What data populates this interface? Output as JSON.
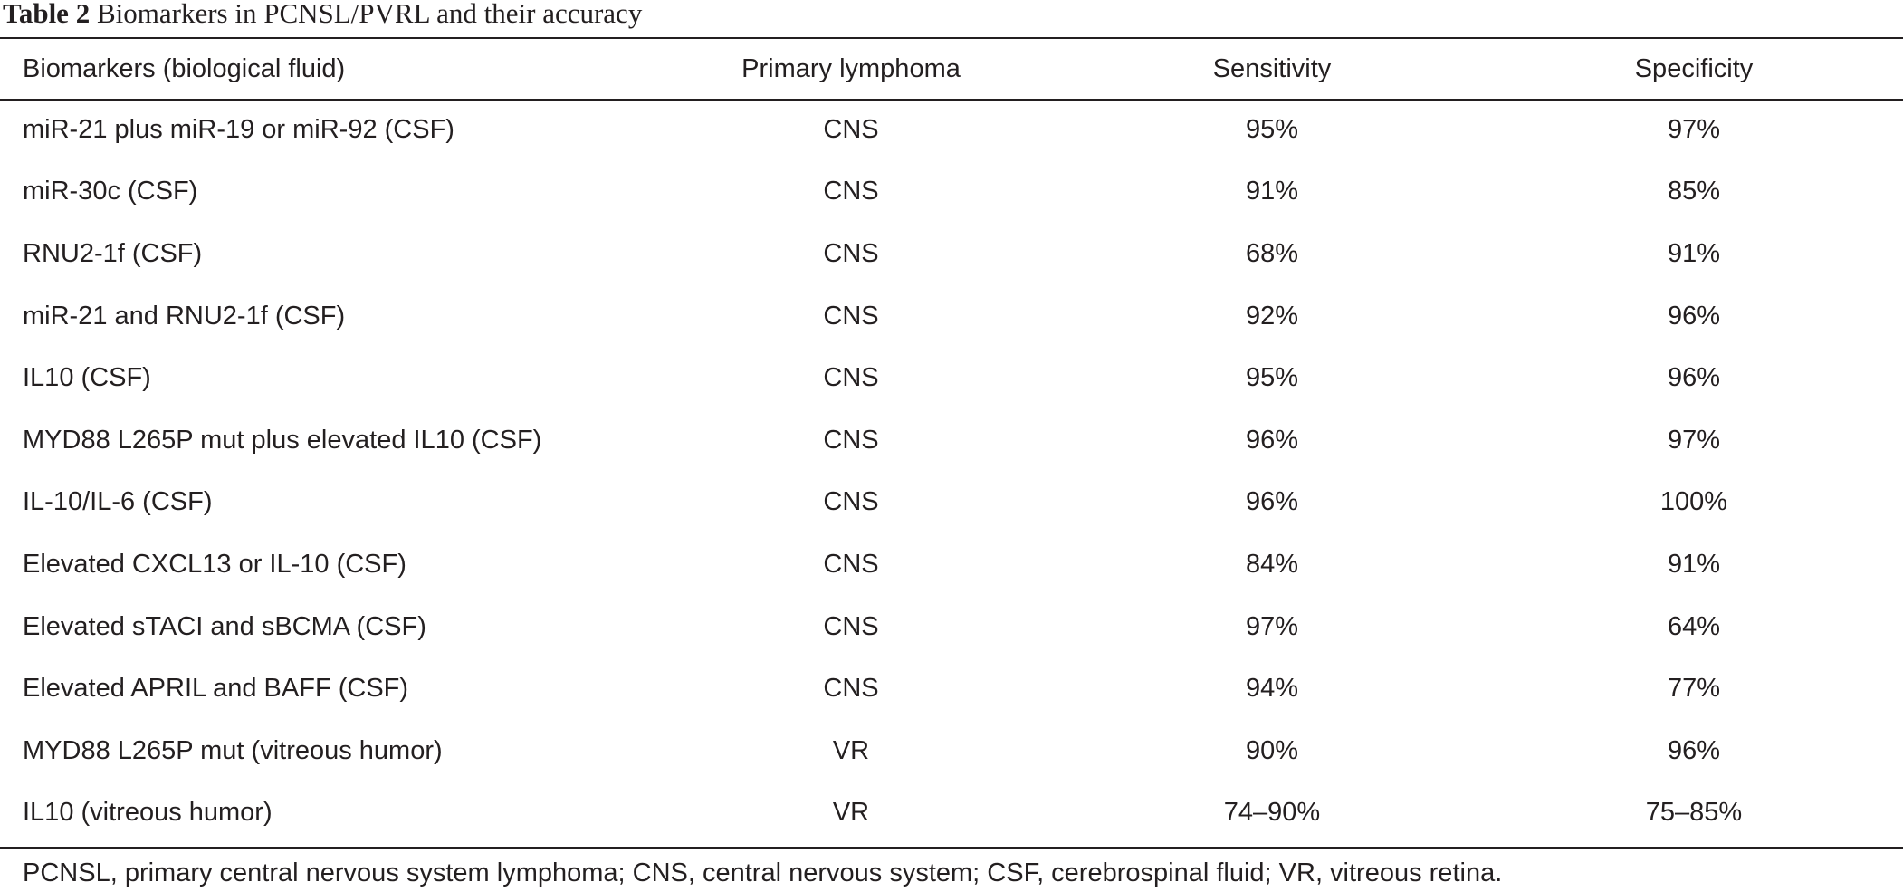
{
  "caption": {
    "label": "Table 2",
    "title": "Biomarkers in PCNSL/PVRL and their accuracy"
  },
  "table": {
    "headers": [
      "Biomarkers (biological fluid)",
      "Primary lymphoma",
      "Sensitivity",
      "Specificity"
    ],
    "rows": [
      [
        "miR-21 plus miR-19 or miR-92 (CSF)",
        "CNS",
        "95%",
        "97%"
      ],
      [
        "miR-30c (CSF)",
        "CNS",
        "91%",
        "85%"
      ],
      [
        "RNU2-1f (CSF)",
        "CNS",
        "68%",
        "91%"
      ],
      [
        "miR-21 and RNU2-1f (CSF)",
        "CNS",
        "92%",
        "96%"
      ],
      [
        "IL10 (CSF)",
        "CNS",
        "95%",
        "96%"
      ],
      [
        "MYD88 L265P mut plus elevated IL10 (CSF)",
        "CNS",
        "96%",
        "97%"
      ],
      [
        "IL-10/IL-6 (CSF)",
        "CNS",
        "96%",
        "100%"
      ],
      [
        "Elevated CXCL13 or IL-10 (CSF)",
        "CNS",
        "84%",
        "91%"
      ],
      [
        "Elevated sTACI and sBCMA (CSF)",
        "CNS",
        "97%",
        "64%"
      ],
      [
        "Elevated APRIL and BAFF (CSF)",
        "CNS",
        "94%",
        "77%"
      ],
      [
        "MYD88 L265P mut (vitreous humor)",
        "VR",
        "90%",
        "96%"
      ],
      [
        "IL10 (vitreous humor)",
        "VR",
        "74–90%",
        "75–85%"
      ]
    ]
  },
  "footnote": "PCNSL, primary central nervous system lymphoma; CNS, central nervous system; CSF, cerebrospinal fluid; VR, vitreous retina."
}
